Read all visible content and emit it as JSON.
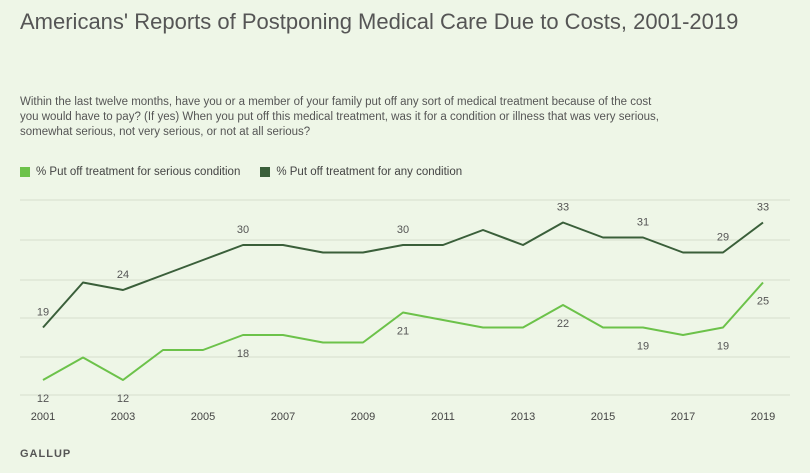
{
  "title": "Americans' Reports of Postponing Medical Care Due to Costs, 2001-2019",
  "question": "Within the last twelve months, have you or a member of your family put off any sort of medical treatment because of the cost you would have to pay? (If yes) When you put off this medical treatment, was it for a condition or illness that was very serious, somewhat serious, not very serious, or not at all serious?",
  "source": "GALLUP",
  "colors": {
    "serious": "#6cc24a",
    "any": "#3a5f3a",
    "grid": "#d6dfcd",
    "background": "#eef6e7"
  },
  "chart_data": {
    "type": "line",
    "title": "Americans' Reports of Postponing Medical Care Due to Costs, 2001-2019",
    "x": [
      2001,
      2002,
      2003,
      2004,
      2005,
      2006,
      2007,
      2008,
      2009,
      2010,
      2011,
      2012,
      2013,
      2014,
      2015,
      2016,
      2017,
      2018,
      2019
    ],
    "xticks": [
      2001,
      2003,
      2005,
      2007,
      2009,
      2011,
      2013,
      2015,
      2017,
      2019
    ],
    "ylim": [
      10,
      36
    ],
    "grid": true,
    "legend": "top-left",
    "series": [
      {
        "name": "% Put off treatment for serious condition",
        "color": "#6cc24a",
        "values": [
          12,
          15,
          12,
          16,
          16,
          18,
          18,
          17,
          17,
          21,
          20,
          19,
          19,
          22,
          19,
          19,
          18,
          19,
          25
        ],
        "labels": [
          {
            "x": 2001,
            "text": "12",
            "pos": "below"
          },
          {
            "x": 2003,
            "text": "12",
            "pos": "below"
          },
          {
            "x": 2006,
            "text": "18",
            "pos": "below"
          },
          {
            "x": 2010,
            "text": "21",
            "pos": "below"
          },
          {
            "x": 2014,
            "text": "22",
            "pos": "below"
          },
          {
            "x": 2016,
            "text": "19",
            "pos": "below"
          },
          {
            "x": 2018,
            "text": "19",
            "pos": "below"
          },
          {
            "x": 2019,
            "text": "25",
            "pos": "below"
          }
        ]
      },
      {
        "name": "% Put off treatment for any condition",
        "color": "#3a5f3a",
        "values": [
          19,
          25,
          24,
          26,
          28,
          30,
          30,
          29,
          29,
          30,
          30,
          32,
          30,
          33,
          31,
          31,
          29,
          29,
          33
        ],
        "labels": [
          {
            "x": 2001,
            "text": "19",
            "pos": "above"
          },
          {
            "x": 2003,
            "text": "24",
            "pos": "above"
          },
          {
            "x": 2006,
            "text": "30",
            "pos": "above"
          },
          {
            "x": 2010,
            "text": "30",
            "pos": "above"
          },
          {
            "x": 2014,
            "text": "33",
            "pos": "above"
          },
          {
            "x": 2016,
            "text": "31",
            "pos": "above"
          },
          {
            "x": 2018,
            "text": "29",
            "pos": "above"
          },
          {
            "x": 2019,
            "text": "33",
            "pos": "above"
          }
        ]
      }
    ]
  }
}
